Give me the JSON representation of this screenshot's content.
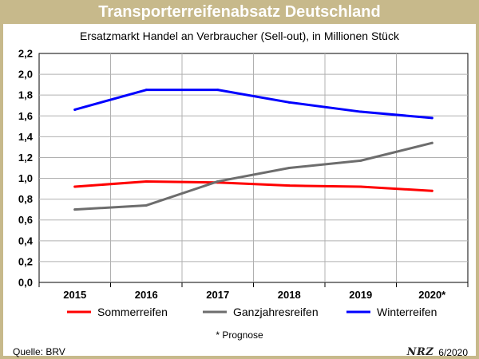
{
  "header": {
    "title": "Transporterreifenabsatz Deutschland"
  },
  "footer": {
    "note": "* Prognose",
    "source": "Quelle: BRV",
    "logo": "NRZ",
    "date": "6/2020"
  },
  "chart_data": {
    "type": "line",
    "title": "Ersatzmarkt Handel an Verbraucher (Sell-out), in Millionen Stück",
    "xlabel": "",
    "ylabel": "",
    "categories": [
      "2015",
      "2016",
      "2017",
      "2018",
      "2019",
      "2020*"
    ],
    "ylim": [
      0,
      2.2
    ],
    "yticks": [
      "0,0",
      "0,2",
      "0,4",
      "0,6",
      "0,8",
      "1,0",
      "1,2",
      "1,4",
      "1,6",
      "1,8",
      "2,0",
      "2,2"
    ],
    "grid": true,
    "legend": "bottom",
    "series": [
      {
        "name": "Sommerreifen",
        "color": "#ff0000",
        "values": [
          0.92,
          0.97,
          0.96,
          0.93,
          0.92,
          0.88
        ]
      },
      {
        "name": "Ganzjahresreifen",
        "color": "#6d6d6d",
        "values": [
          0.7,
          0.74,
          0.97,
          1.1,
          1.17,
          1.34
        ]
      },
      {
        "name": "Winterreifen",
        "color": "#0000ff",
        "values": [
          1.66,
          1.85,
          1.85,
          1.73,
          1.64,
          1.58
        ]
      }
    ]
  }
}
